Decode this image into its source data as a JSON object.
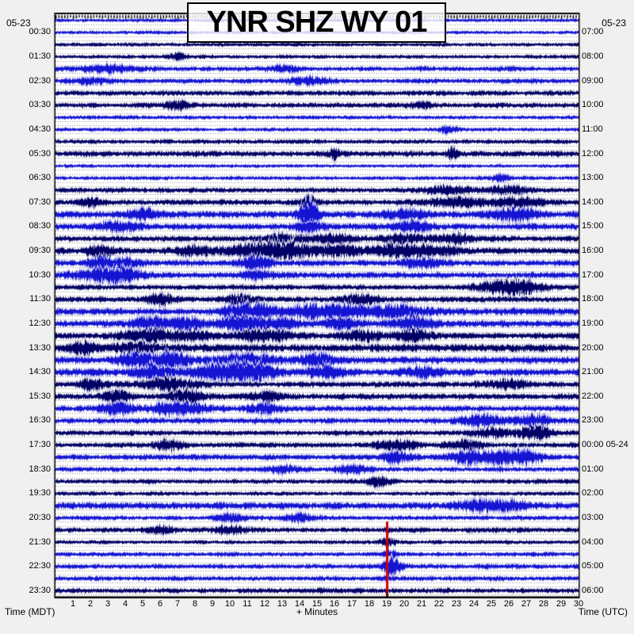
{
  "title": "YNR SHZ WY 01",
  "station": {
    "code": "YNR",
    "channel": "SHZ",
    "network": "WY",
    "instance": "01"
  },
  "date_top_left": "05-23",
  "date_top_right": "05-23",
  "axes": {
    "left_label": "Time (MDT)",
    "right_label": "Time (UTC)",
    "bottom_label": "+ Minutes",
    "minute_ticks": [
      1,
      2,
      3,
      4,
      5,
      6,
      7,
      8,
      9,
      10,
      11,
      12,
      13,
      14,
      15,
      16,
      17,
      18,
      19,
      20,
      21,
      22,
      23,
      24,
      25,
      26,
      27,
      28,
      29,
      30
    ],
    "minutes_per_line": 30,
    "lines": 48,
    "start_mdt": "05-23 00:00",
    "start_utc": "05-23 06:00"
  },
  "colors": {
    "page_bg": "#f0f0f0",
    "plot_bg": "#ffffff",
    "border": "#000000",
    "trace_blue": "#1414d2",
    "trace_navy": "#000066",
    "halo_blue": "#b4b4ec",
    "halo_navy": "#c8c8dc",
    "grid_dot": "#8c8c8c",
    "event_red": "#d40000",
    "event_red_dark": "#7a0000"
  },
  "chart_data": {
    "type": "helicorder",
    "title": "YNR SHZ WY 01",
    "xlabel": "+ Minutes",
    "x_range": [
      0,
      30
    ],
    "event_marker": {
      "minute": 19.0,
      "start_row": 42,
      "end_row": 48,
      "note": "red vertical event line"
    },
    "rows": [
      {
        "mdt": "00:00",
        "color": "blue",
        "amp": 2.2,
        "bursts": []
      },
      {
        "mdt": "00:30",
        "label_left": "00:30",
        "label_right": "07:00",
        "color": "blue",
        "amp": 2.2,
        "bursts": []
      },
      {
        "mdt": "01:00",
        "color": "navy",
        "amp": 2.6,
        "bursts": []
      },
      {
        "mdt": "01:30",
        "label_left": "01:30",
        "label_right": "08:00",
        "color": "navy",
        "amp": 2.6,
        "bursts": [
          [
            7,
            4,
            0.4
          ]
        ]
      },
      {
        "mdt": "02:00",
        "color": "blue",
        "amp": 3.0,
        "bursts": [
          [
            3,
            5,
            1.2
          ],
          [
            13,
            4,
            0.6
          ]
        ]
      },
      {
        "mdt": "02:30",
        "label_left": "02:30",
        "label_right": "09:00",
        "color": "blue",
        "amp": 3.0,
        "bursts": [
          [
            2,
            4,
            0.8
          ],
          [
            14.5,
            5,
            0.8
          ]
        ]
      },
      {
        "mdt": "03:00",
        "color": "navy",
        "amp": 3.4,
        "bursts": []
      },
      {
        "mdt": "03:30",
        "label_left": "03:30",
        "label_right": "10:00",
        "color": "navy",
        "amp": 3.4,
        "bursts": [
          [
            7,
            5,
            0.5
          ],
          [
            21,
            4,
            0.5
          ]
        ]
      },
      {
        "mdt": "04:00",
        "color": "blue",
        "amp": 2.5,
        "bursts": []
      },
      {
        "mdt": "04:30",
        "label_left": "04:30",
        "label_right": "11:00",
        "color": "blue",
        "amp": 2.5,
        "bursts": [
          [
            22.5,
            4,
            0.4
          ]
        ]
      },
      {
        "mdt": "05:00",
        "color": "navy",
        "amp": 3.0,
        "bursts": []
      },
      {
        "mdt": "05:30",
        "label_left": "05:30",
        "label_right": "12:00",
        "color": "navy",
        "amp": 3.8,
        "bursts": [
          [
            16,
            9,
            0.18
          ],
          [
            22.7,
            9,
            0.18
          ]
        ]
      },
      {
        "mdt": "06:00",
        "color": "blue",
        "amp": 2.3,
        "bursts": []
      },
      {
        "mdt": "06:30",
        "label_left": "06:30",
        "label_right": "13:00",
        "color": "blue",
        "amp": 2.5,
        "bursts": [
          [
            25.5,
            5,
            0.4
          ]
        ]
      },
      {
        "mdt": "07:00",
        "color": "navy",
        "amp": 3.4,
        "bursts": [
          [
            22.5,
            5,
            1.0
          ],
          [
            26,
            5,
            0.8
          ]
        ]
      },
      {
        "mdt": "07:30",
        "label_left": "07:30",
        "label_right": "14:00",
        "color": "navy",
        "amp": 3.8,
        "bursts": [
          [
            2,
            5,
            0.5
          ],
          [
            14.5,
            8,
            0.3
          ],
          [
            23,
            6,
            1.2
          ],
          [
            26.5,
            6,
            1.0
          ]
        ]
      },
      {
        "mdt": "08:00",
        "color": "blue",
        "amp": 4.4,
        "bursts": [
          [
            5,
            7,
            0.6
          ],
          [
            14.5,
            22,
            0.35
          ],
          [
            20,
            6,
            0.8
          ],
          [
            26.5,
            7,
            1.0
          ]
        ]
      },
      {
        "mdt": "08:30",
        "label_left": "08:30",
        "label_right": "15:00",
        "color": "blue",
        "amp": 4.0,
        "bursts": [
          [
            3.5,
            6,
            0.8
          ],
          [
            14.5,
            7,
            0.6
          ],
          [
            20.5,
            6,
            0.8
          ]
        ]
      },
      {
        "mdt": "09:00",
        "color": "navy",
        "amp": 3.8,
        "bursts": [
          [
            13,
            6,
            0.8
          ],
          [
            16,
            6,
            0.8
          ],
          [
            20,
            6,
            0.8
          ],
          [
            23,
            6,
            0.8
          ]
        ]
      },
      {
        "mdt": "09:30",
        "label_left": "09:30",
        "label_right": "16:00",
        "color": "navy",
        "amp": 4.2,
        "bursts": [
          [
            2.5,
            7,
            0.6
          ],
          [
            8,
            6,
            0.8
          ],
          [
            11.5,
            9,
            1.2
          ],
          [
            13.5,
            8,
            0.8
          ],
          [
            16,
            7,
            0.8
          ],
          [
            19.5,
            8,
            1.2
          ],
          [
            22,
            6,
            0.8
          ]
        ]
      },
      {
        "mdt": "10:00",
        "color": "blue",
        "amp": 4.0,
        "bursts": [
          [
            2.5,
            8,
            0.5
          ],
          [
            4,
            7,
            0.5
          ],
          [
            11.5,
            9,
            0.6
          ],
          [
            21,
            5,
            0.8
          ]
        ]
      },
      {
        "mdt": "10:30",
        "label_left": "10:30",
        "label_right": "17:00",
        "color": "blue",
        "amp": 4.0,
        "bursts": [
          [
            2.5,
            7,
            1.0
          ],
          [
            4,
            7,
            0.8
          ],
          [
            11.5,
            6,
            0.6
          ]
        ]
      },
      {
        "mdt": "11:00",
        "color": "navy",
        "amp": 3.6,
        "bursts": [
          [
            25.5,
            8,
            1.0
          ],
          [
            27,
            7,
            0.8
          ]
        ]
      },
      {
        "mdt": "11:30",
        "label_left": "11:30",
        "label_right": "18:00",
        "color": "navy",
        "amp": 3.8,
        "bursts": [
          [
            6,
            8,
            0.5
          ],
          [
            10.5,
            6,
            0.6
          ],
          [
            17.5,
            6,
            0.8
          ]
        ]
      },
      {
        "mdt": "12:00",
        "color": "blue",
        "amp": 4.4,
        "bursts": [
          [
            10.5,
            10,
            0.7
          ],
          [
            12,
            9,
            0.6
          ],
          [
            14.5,
            8,
            0.8
          ],
          [
            16.5,
            8,
            0.8
          ],
          [
            19.5,
            8,
            1.2
          ]
        ]
      },
      {
        "mdt": "12:30",
        "label_left": "12:30",
        "label_right": "19:00",
        "color": "blue",
        "amp": 4.4,
        "bursts": [
          [
            5.5,
            8,
            0.7
          ],
          [
            7.5,
            8,
            0.7
          ],
          [
            10.5,
            9,
            0.9
          ],
          [
            13,
            7,
            0.7
          ],
          [
            16.5,
            7,
            0.7
          ],
          [
            20.5,
            8,
            0.8
          ]
        ]
      },
      {
        "mdt": "13:00",
        "color": "navy",
        "amp": 4.0,
        "bursts": [
          [
            5.5,
            8,
            1.2
          ],
          [
            8,
            6,
            0.6
          ],
          [
            12,
            7,
            1.2
          ],
          [
            17.5,
            7,
            0.8
          ],
          [
            20.5,
            7,
            0.8
          ]
        ]
      },
      {
        "mdt": "13:30",
        "label_left": "13:30",
        "label_right": "20:00",
        "color": "navy",
        "amp": 5.4,
        "bursts": [
          [
            1.5,
            7,
            0.6
          ],
          [
            4.5,
            7,
            0.6
          ]
        ]
      },
      {
        "mdt": "14:00",
        "color": "blue",
        "amp": 4.4,
        "bursts": [
          [
            4.5,
            8,
            0.7
          ],
          [
            6.5,
            10,
            0.9
          ],
          [
            11,
            8,
            1.2
          ],
          [
            15,
            7,
            0.7
          ]
        ]
      },
      {
        "mdt": "14:30",
        "label_left": "14:30",
        "label_right": "21:00",
        "color": "blue",
        "amp": 4.8,
        "bursts": [
          [
            5.5,
            9,
            0.7
          ],
          [
            9.5,
            10,
            1.2
          ],
          [
            11.5,
            9,
            0.8
          ],
          [
            15.5,
            8,
            0.7
          ],
          [
            21,
            6,
            0.7
          ]
        ]
      },
      {
        "mdt": "15:00",
        "color": "navy",
        "amp": 3.9,
        "bursts": [
          [
            2,
            7,
            0.5
          ],
          [
            6.5,
            8,
            1.2
          ],
          [
            26,
            6,
            0.7
          ]
        ]
      },
      {
        "mdt": "15:30",
        "label_left": "15:30",
        "label_right": "22:00",
        "color": "navy",
        "amp": 3.9,
        "bursts": [
          [
            3.5,
            10,
            0.5
          ],
          [
            7.5,
            8,
            0.7
          ],
          [
            12,
            6,
            0.6
          ]
        ]
      },
      {
        "mdt": "16:00",
        "color": "blue",
        "amp": 3.9,
        "bursts": [
          [
            3.5,
            8,
            0.6
          ],
          [
            7,
            8,
            1.2
          ],
          [
            12,
            6,
            0.6
          ]
        ]
      },
      {
        "mdt": "16:30",
        "label_left": "16:30",
        "label_right": "23:00",
        "color": "blue",
        "amp": 3.5,
        "bursts": [
          [
            24.5,
            8,
            1.0
          ],
          [
            27.5,
            7,
            0.7
          ]
        ]
      },
      {
        "mdt": "17:00",
        "color": "navy",
        "amp": 3.5,
        "bursts": [
          [
            25,
            6,
            0.7
          ],
          [
            27.5,
            9,
            0.7
          ]
        ]
      },
      {
        "mdt": "17:30",
        "label_left": "17:30",
        "label_right": "00:00 05-24",
        "color": "navy",
        "amp": 3.5,
        "bursts": [
          [
            6.5,
            7,
            0.6
          ],
          [
            19.5,
            7,
            0.8
          ],
          [
            23.5,
            6,
            0.7
          ]
        ]
      },
      {
        "mdt": "18:00",
        "color": "blue",
        "amp": 3.5,
        "bursts": [
          [
            19.5,
            7,
            0.6
          ],
          [
            23.5,
            7,
            0.7
          ],
          [
            25.5,
            8,
            1.0
          ],
          [
            27,
            7,
            0.6
          ]
        ]
      },
      {
        "mdt": "18:30",
        "label_left": "18:30",
        "label_right": "01:00",
        "color": "blue",
        "amp": 3.1,
        "bursts": [
          [
            13,
            5,
            0.6
          ],
          [
            17,
            5,
            0.6
          ]
        ]
      },
      {
        "mdt": "19:00",
        "color": "navy",
        "amp": 3.0,
        "bursts": [
          [
            18.5,
            7,
            0.5
          ]
        ]
      },
      {
        "mdt": "19:30",
        "label_left": "19:30",
        "label_right": "02:00",
        "color": "navy",
        "amp": 2.8,
        "bursts": []
      },
      {
        "mdt": "20:00",
        "color": "blue",
        "amp": 4.4,
        "bursts": [
          [
            24,
            6,
            0.8
          ],
          [
            26,
            6,
            0.8
          ]
        ]
      },
      {
        "mdt": "20:30",
        "label_left": "20:30",
        "label_right": "03:00",
        "color": "blue",
        "amp": 3.0,
        "bursts": [
          [
            10,
            5,
            0.6
          ],
          [
            14,
            5,
            0.6
          ]
        ]
      },
      {
        "mdt": "21:00",
        "color": "navy",
        "amp": 3.4,
        "bursts": [
          [
            6,
            5,
            0.6
          ],
          [
            10,
            5,
            0.6
          ]
        ]
      },
      {
        "mdt": "21:30",
        "label_left": "21:30",
        "label_right": "04:00",
        "color": "navy",
        "amp": 2.8,
        "bursts": [
          [
            19,
            4,
            0.4
          ]
        ]
      },
      {
        "mdt": "22:00",
        "color": "blue",
        "amp": 3.0,
        "bursts": [
          [
            19.2,
            5,
            0.3
          ]
        ]
      },
      {
        "mdt": "22:30",
        "label_left": "22:30",
        "label_right": "05:00",
        "color": "blue",
        "amp": 3.2,
        "bursts": [
          [
            19.3,
            14,
            0.35
          ]
        ]
      },
      {
        "mdt": "23:00",
        "color": "blue",
        "amp": 3.0,
        "bursts": []
      },
      {
        "mdt": "23:30",
        "label_left": "23:30",
        "label_right": "06:00",
        "color": "navy",
        "amp": 3.4,
        "bursts": []
      }
    ]
  }
}
